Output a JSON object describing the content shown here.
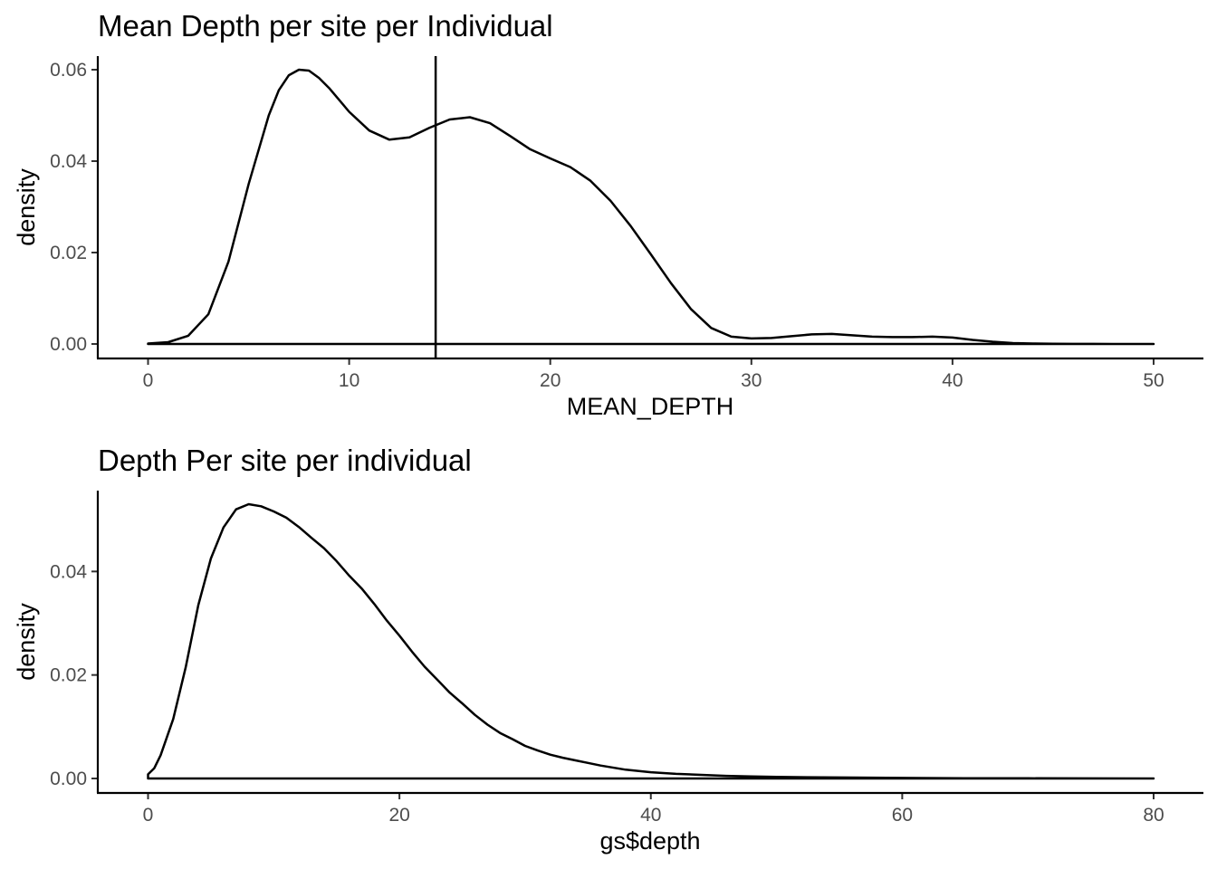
{
  "chart_data": [
    {
      "type": "area",
      "title": "Mean Depth per site per Individual",
      "xlabel": "MEAN_DEPTH",
      "ylabel": "density",
      "xlim": [
        0,
        50
      ],
      "ylim": [
        0,
        0.06
      ],
      "x_ticks": [
        0,
        10,
        20,
        30,
        40,
        50
      ],
      "x_tick_labels": [
        "0",
        "10",
        "20",
        "30",
        "40",
        "50"
      ],
      "y_ticks": [
        0,
        0.02,
        0.04,
        0.06
      ],
      "y_tick_labels": [
        "0.00",
        "0.02",
        "0.04",
        "0.06"
      ],
      "grid": false,
      "vline": 14.3,
      "series": [
        {
          "x": [
            0,
            1,
            2,
            3,
            4,
            5,
            6,
            6.5,
            7,
            7.5,
            8,
            8.5,
            9,
            10,
            11,
            12,
            13,
            14,
            15,
            16,
            17,
            18,
            19,
            20,
            21,
            22,
            23,
            24,
            25,
            26,
            27,
            28,
            29,
            30,
            31,
            32,
            33,
            34,
            35,
            36,
            37,
            38,
            39,
            40,
            41,
            42,
            43,
            44,
            45,
            46,
            47,
            48,
            49,
            50
          ],
          "y": [
            0.0001,
            0.0004,
            0.0018,
            0.0065,
            0.018,
            0.035,
            0.05,
            0.0555,
            0.0588,
            0.06,
            0.0598,
            0.0582,
            0.056,
            0.0508,
            0.0467,
            0.0447,
            0.0452,
            0.0473,
            0.0491,
            0.0496,
            0.0483,
            0.0455,
            0.0426,
            0.0406,
            0.0387,
            0.0357,
            0.0313,
            0.0258,
            0.0196,
            0.0133,
            0.0076,
            0.0035,
            0.0016,
            0.0012,
            0.0013,
            0.0017,
            0.0021,
            0.0022,
            0.0019,
            0.0016,
            0.0015,
            0.0015,
            0.0016,
            0.0014,
            0.0009,
            0.0005,
            0.0002,
            0.0001,
            5e-05,
            2e-05,
            1e-05,
            0,
            0,
            0
          ]
        }
      ]
    },
    {
      "type": "area",
      "title": "Depth Per site per individual",
      "xlabel": "gs$depth",
      "ylabel": "density",
      "xlim": [
        0,
        80
      ],
      "ylim": [
        0,
        0.053
      ],
      "x_ticks": [
        0,
        20,
        40,
        60,
        80
      ],
      "x_tick_labels": [
        "0",
        "20",
        "40",
        "60",
        "80"
      ],
      "y_ticks": [
        0,
        0.02,
        0.04
      ],
      "y_tick_labels": [
        "0.00",
        "0.02",
        "0.04"
      ],
      "grid": false,
      "series": [
        {
          "x": [
            0,
            0.5,
            1,
            2,
            3,
            4,
            5,
            6,
            7,
            8,
            9,
            10,
            11,
            12,
            13,
            14,
            15,
            16,
            17,
            18,
            19,
            20,
            21,
            22,
            23,
            24,
            25,
            26,
            27,
            28,
            29,
            30,
            31,
            32,
            33,
            34,
            35,
            36,
            38,
            40,
            42,
            44,
            46,
            48,
            50,
            55,
            60,
            65,
            70,
            75,
            80
          ],
          "y": [
            0.0008,
            0.002,
            0.0045,
            0.0115,
            0.0215,
            0.0335,
            0.0425,
            0.0485,
            0.052,
            0.053,
            0.0526,
            0.0516,
            0.0504,
            0.0486,
            0.0465,
            0.0445,
            0.042,
            0.0392,
            0.0367,
            0.0337,
            0.0305,
            0.0276,
            0.0245,
            0.0216,
            0.0191,
            0.0166,
            0.0145,
            0.0123,
            0.0104,
            0.0088,
            0.0076,
            0.0063,
            0.0054,
            0.0046,
            0.004,
            0.0035,
            0.003,
            0.0025,
            0.0017,
            0.0012,
            0.0009,
            0.0007,
            0.0005,
            0.0004,
            0.0003,
            0.0002,
            0.0001,
            5e-05,
            3e-05,
            1e-05,
            0
          ]
        }
      ]
    }
  ]
}
